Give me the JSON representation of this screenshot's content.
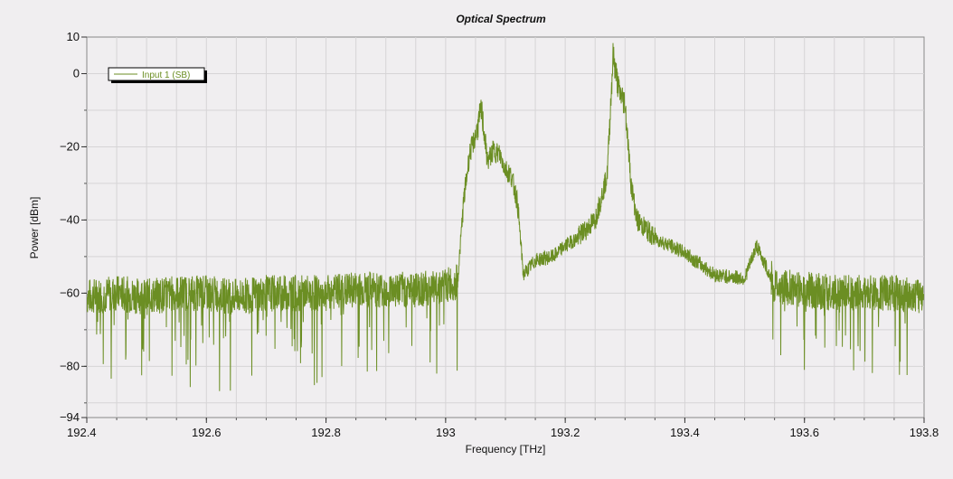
{
  "chart_data": {
    "type": "line",
    "title": "Optical Spectrum",
    "xlabel": "Frequency [THz]",
    "ylabel": "Power [dBm]",
    "xlim": [
      192.4,
      193.8
    ],
    "ylim": [
      -94,
      10
    ],
    "x_ticks": [
      192.4,
      192.6,
      192.8,
      193,
      193.2,
      193.4,
      193.6,
      193.8
    ],
    "x_tick_labels": [
      "192.4",
      "192.6",
      "192.8",
      "193",
      "193.2",
      "193.4",
      "193.6",
      "193.8"
    ],
    "y_ticks": [
      10,
      0,
      -20,
      -40,
      -60,
      -80,
      -94
    ],
    "y_tick_labels": [
      "10",
      "0",
      "−20",
      "−40",
      "−60",
      "−80",
      "−94"
    ],
    "grid": true,
    "legend_position": "top-left",
    "series": [
      {
        "name": "Input 1  (SB)",
        "color": "#6b8e23",
        "x": [
          192.4,
          192.45,
          192.5,
          192.55,
          192.6,
          192.65,
          192.7,
          192.75,
          192.8,
          192.85,
          192.9,
          192.95,
          193.0,
          193.02,
          193.03,
          193.04,
          193.05,
          193.06,
          193.07,
          193.08,
          193.09,
          193.1,
          193.11,
          193.12,
          193.13,
          193.15,
          193.18,
          193.2,
          193.22,
          193.25,
          193.27,
          193.28,
          193.29,
          193.3,
          193.31,
          193.32,
          193.35,
          193.4,
          193.45,
          193.5,
          193.52,
          193.55,
          193.6,
          193.65,
          193.7,
          193.75,
          193.8
        ],
        "y": [
          -61,
          -60,
          -61,
          -60,
          -60,
          -61,
          -60,
          -60,
          -60,
          -59,
          -59,
          -59,
          -58,
          -57,
          -35,
          -22,
          -17,
          -10,
          -24,
          -21,
          -22,
          -26,
          -28,
          -35,
          -55,
          -51,
          -50,
          -47,
          -45,
          -40,
          -28,
          5,
          -5,
          -8,
          -30,
          -40,
          -45,
          -49,
          -55,
          -56,
          -47,
          -58,
          -59,
          -60,
          -60,
          -60,
          -61
        ]
      }
    ]
  }
}
